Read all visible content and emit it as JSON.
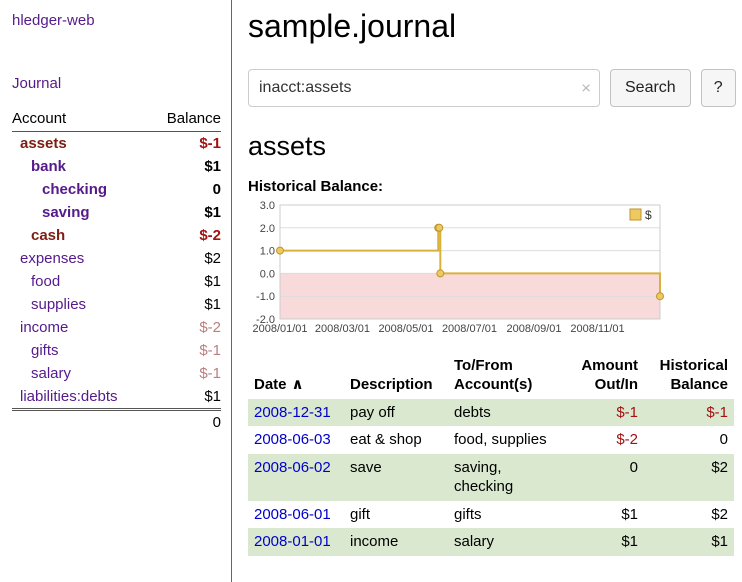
{
  "sidebar": {
    "app_title": "hledger-web",
    "journal_link": "Journal",
    "accounts_header": {
      "account": "Account",
      "balance": "Balance"
    },
    "accounts": [
      {
        "name": "assets",
        "depth": 0,
        "name_class": "maroon-bold",
        "balance": "$-1",
        "bal_class": "red-bold"
      },
      {
        "name": "bank",
        "depth": 1,
        "name_class": "purple-bold",
        "balance": "$1",
        "bal_class": "black-bold"
      },
      {
        "name": "checking",
        "depth": 2,
        "name_class": "purple-bold",
        "balance": "0",
        "bal_class": "black-bold"
      },
      {
        "name": "saving",
        "depth": 2,
        "name_class": "purple-bold",
        "balance": "$1",
        "bal_class": "black-bold"
      },
      {
        "name": "cash",
        "depth": 1,
        "name_class": "maroon-bold",
        "balance": "$-2",
        "bal_class": "red-bold"
      },
      {
        "name": "expenses",
        "depth": 0,
        "name_class": "purple",
        "balance": "$2",
        "bal_class": "plain"
      },
      {
        "name": "food",
        "depth": 1,
        "name_class": "purple",
        "balance": "$1",
        "bal_class": "plain"
      },
      {
        "name": "supplies",
        "depth": 1,
        "name_class": "purple",
        "balance": "$1",
        "bal_class": "plain"
      },
      {
        "name": "income",
        "depth": 0,
        "name_class": "purple",
        "balance": "$-2",
        "bal_class": "muted-red"
      },
      {
        "name": "gifts",
        "depth": 1,
        "name_class": "purple",
        "balance": "$-1",
        "bal_class": "muted-red"
      },
      {
        "name": "salary",
        "depth": 1,
        "name_class": "purple",
        "balance": "$-1",
        "bal_class": "muted-red"
      },
      {
        "name": "liabilities:debts",
        "depth": 0,
        "name_class": "purple",
        "balance": "$1",
        "bal_class": "plain"
      }
    ],
    "total": "0"
  },
  "main": {
    "title": "sample.journal",
    "search": {
      "value": "inacct:assets",
      "clear_icon": "×",
      "button_label": "Search",
      "help_label": "?"
    },
    "account_heading": "assets",
    "chart_label": "Historical Balance:"
  },
  "chart_data": {
    "type": "line",
    "step": true,
    "title": "Historical Balance:",
    "x_domain": [
      "2008-01-01",
      "2008-12-31"
    ],
    "ylim": [
      -2,
      3
    ],
    "y_ticks": [
      3.0,
      2.0,
      1.0,
      0.0,
      -1.0,
      -2.0
    ],
    "x_ticks": [
      {
        "date": "2008-01-01",
        "label": "2008/01/01"
      },
      {
        "date": "2008-03-01",
        "label": "2008/03/01"
      },
      {
        "date": "2008-05-01",
        "label": "2008/05/01"
      },
      {
        "date": "2008-07-01",
        "label": "2008/07/01"
      },
      {
        "date": "2008-09-01",
        "label": "2008/09/01"
      },
      {
        "date": "2008-11-01",
        "label": "2008/11/01"
      }
    ],
    "series": [
      {
        "name": "$",
        "points": [
          [
            "2008-01-01",
            1
          ],
          [
            "2008-06-01",
            2
          ],
          [
            "2008-06-02",
            2
          ],
          [
            "2008-06-03",
            0
          ],
          [
            "2008-12-31",
            -1
          ]
        ]
      }
    ],
    "legend": {
      "label": "$",
      "position": "top-right"
    },
    "colors": {
      "line": "#d9b23c",
      "marker_fill": "#eec960",
      "marker_stroke": "#bd9530",
      "negative_region": "#f9dada",
      "grid": "#dddddd",
      "border": "#cccccc",
      "tick_text": "#444444"
    }
  },
  "register": {
    "headers": {
      "date": "Date",
      "sort_icon": "∧",
      "description": "Description",
      "accounts": "To/From\nAccount(s)",
      "amount": "Amount\nOut/In",
      "balance": "Historical\nBalance"
    },
    "rows": [
      {
        "date": "2008-12-31",
        "description": "pay off",
        "accounts": "debts",
        "amount": "$-1",
        "amount_neg": true,
        "balance": "$-1",
        "balance_neg": true,
        "shaded": true
      },
      {
        "date": "2008-06-03",
        "description": "eat & shop",
        "accounts": "food, supplies",
        "amount": "$-2",
        "amount_neg": true,
        "balance": "0",
        "balance_neg": false,
        "shaded": false
      },
      {
        "date": "2008-06-02",
        "description": "save",
        "accounts": "saving,\nchecking",
        "amount": "0",
        "amount_neg": false,
        "balance": "$2",
        "balance_neg": false,
        "shaded": true
      },
      {
        "date": "2008-06-01",
        "description": "gift",
        "accounts": "gifts",
        "amount": "$1",
        "amount_neg": false,
        "balance": "$2",
        "balance_neg": false,
        "shaded": false
      },
      {
        "date": "2008-01-01",
        "description": "income",
        "accounts": "salary",
        "amount": "$1",
        "amount_neg": false,
        "balance": "$1",
        "balance_neg": false,
        "shaded": true
      }
    ]
  }
}
